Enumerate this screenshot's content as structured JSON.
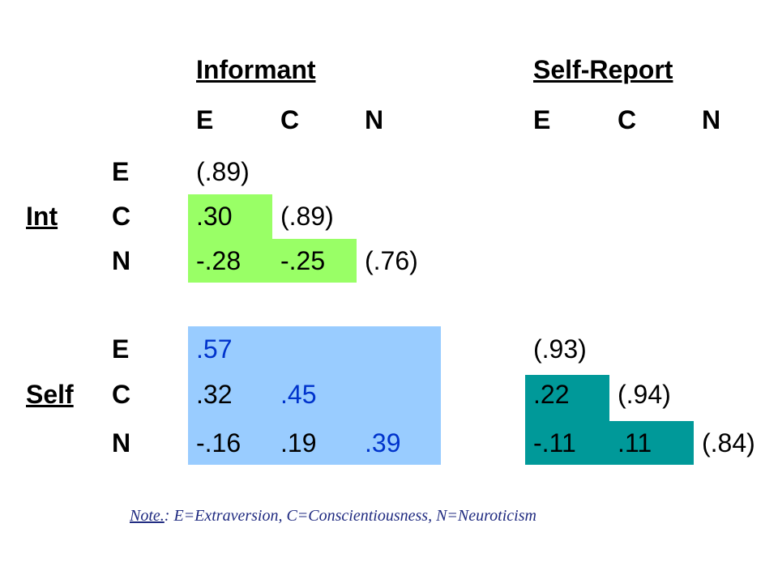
{
  "headers": {
    "informant": "Informant",
    "self_report": "Self-Report"
  },
  "columns": {
    "informant": [
      "E",
      "C",
      "N"
    ],
    "self": [
      "E",
      "C",
      "N"
    ]
  },
  "groups": {
    "int": "Int",
    "self": "Self"
  },
  "row_labels": {
    "int": [
      "E",
      "C",
      "N"
    ],
    "self": [
      "E",
      "C",
      "N"
    ]
  },
  "cells": {
    "int_e_inf_e": "(.89)",
    "int_c_inf_e": ".30",
    "int_c_inf_c": "(.89)",
    "int_n_inf_e": "-.28",
    "int_n_inf_c": "-.25",
    "int_n_inf_n": "(.76)",
    "self_e_inf_e": ".57",
    "self_e_self_e": "(.93)",
    "self_c_inf_e": ".32",
    "self_c_inf_c": ".45",
    "self_c_self_e": ".22",
    "self_c_self_c": "(.94)",
    "self_n_inf_e": "-.16",
    "self_n_inf_c": ".19",
    "self_n_inf_n": ".39",
    "self_n_self_e": "-.11",
    "self_n_self_c": ".11",
    "self_n_self_n": "(.84)"
  },
  "note": {
    "label": "Note.",
    "text": ": E=Extraversion, C=Conscientiousness, N=Neuroticism"
  },
  "colors": {
    "green": "#99ff66",
    "light_blue": "#99ccff",
    "teal": "#009999",
    "blue_text": "#0033cc"
  }
}
